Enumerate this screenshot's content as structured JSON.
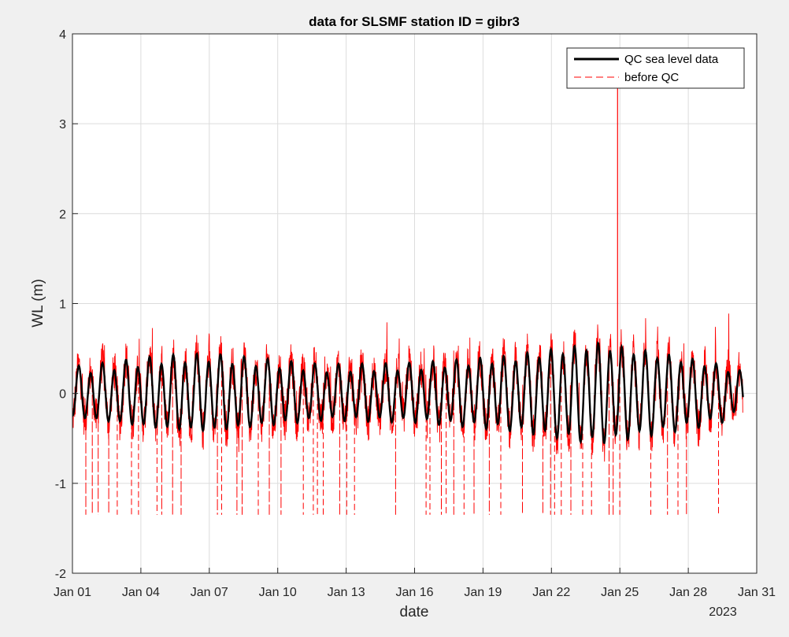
{
  "chart_data": {
    "type": "line",
    "title": "data for SLSMF station ID = gibr3",
    "xlabel": "date",
    "ylabel": "WL (m)",
    "year_label": "2023",
    "x_range": [
      "2023-01-01",
      "2023-01-31"
    ],
    "ylim": [
      -2,
      4
    ],
    "x_ticks": [
      "Jan 01",
      "Jan 04",
      "Jan 07",
      "Jan 10",
      "Jan 13",
      "Jan 16",
      "Jan 19",
      "Jan 22",
      "Jan 25",
      "Jan 28",
      "Jan 31"
    ],
    "y_ticks": [
      "-2",
      "-1",
      "0",
      "1",
      "2",
      "3",
      "4"
    ],
    "y_tick_values": [
      -2,
      -1,
      0,
      1,
      2,
      3,
      4
    ],
    "grid": true,
    "legend_position": "top-right",
    "series": [
      {
        "name": "QC sea level data",
        "color": "#000000",
        "style": "solid",
        "tide": {
          "mean": 0.0,
          "semidiurnal_period_days": 0.5175,
          "amplitude_by_day": [
            {
              "day": 0,
              "amp": 0.25
            },
            {
              "day": 4,
              "amp": 0.38
            },
            {
              "day": 6,
              "amp": 0.4
            },
            {
              "day": 11,
              "amp": 0.28
            },
            {
              "day": 15,
              "amp": 0.3
            },
            {
              "day": 19,
              "amp": 0.38
            },
            {
              "day": 23,
              "amp": 0.53
            },
            {
              "day": 25,
              "amp": 0.45
            },
            {
              "day": 28,
              "amp": 0.32
            },
            {
              "day": 29.4,
              "amp": 0.22
            }
          ],
          "x_end_day": 29.4
        }
      },
      {
        "name": "before QC",
        "color": "#ff0000",
        "style": "dashed",
        "dropout_value": -1.35,
        "spike": {
          "x": "2023-01-24",
          "value": 3.55
        }
      }
    ]
  }
}
